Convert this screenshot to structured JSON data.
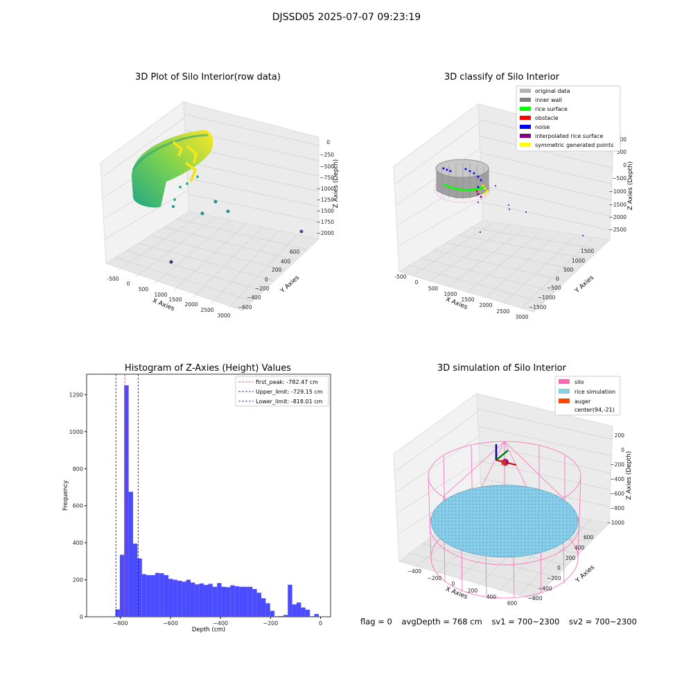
{
  "figure": {
    "suptitle": "DJSSD05 2025-07-07 09:23:19",
    "footer": {
      "flag": "flag = 0",
      "avg_depth": "avgDepth = 768 cm",
      "sv1": "sv1 = 700~2300",
      "sv2": "sv2 = 700~2300"
    }
  },
  "colors": {
    "histogram_bar": "#4b4bff",
    "first_peak_line": "#d62728",
    "limit_line": "#0000aa",
    "silo": "#ff69b4",
    "rice_simulation": "#87ceeb",
    "auger": "#ff4500",
    "original_data": "#b3b3b3",
    "inner_wall": "#808080",
    "rice_surface": "#00ff00",
    "obstacle": "#ff0000",
    "noise": "#0000ff",
    "interpolated_rice_surface": "#800080",
    "symmetric_generated_points": "#ffff00"
  },
  "chart_data": [
    {
      "type": "scatter",
      "title": "3D Plot of Silo Interior(row data)",
      "xlabel": "X Axies",
      "ylabel": "Y Axies",
      "zlabel": "Z Axies (Depth)",
      "x_ticks": [
        "-500",
        "0",
        "500",
        "1000",
        "1500",
        "2000",
        "2500",
        "3000"
      ],
      "y_ticks": [
        "600",
        "400",
        "200",
        "0",
        "−200",
        "−400",
        "−600"
      ],
      "z_ticks": [
        "0",
        "−250",
        "−500",
        "−750",
        "−1000",
        "−1250",
        "−1500",
        "−1750",
        "−2000"
      ],
      "colormap": "viridis"
    },
    {
      "type": "scatter",
      "title": "3D classify of Silo Interior",
      "xlabel": "X Axies",
      "ylabel": "Y Axies",
      "zlabel": "Z Axies (Depth)",
      "x_ticks": [
        "-500",
        "0",
        "500",
        "1000",
        "1500",
        "2000",
        "2500",
        "3000"
      ],
      "y_ticks": [
        "1500",
        "1000",
        "500",
        "0",
        "−500",
        "−1000",
        "−1500"
      ],
      "z_ticks": [
        "1000",
        "500",
        "0",
        "−500",
        "−1000",
        "−1500",
        "−2000",
        "−2500"
      ],
      "legend": [
        "original data",
        "inner wall",
        "rice surface",
        "obstacle",
        "noise",
        "interpolated rice surface",
        "symmetric generated points"
      ],
      "legend_position": "top-right"
    },
    {
      "type": "bar",
      "title": "Histogram of Z-Axies (Height) Values",
      "xlabel": "Depth (cm)",
      "ylabel": "Frequency",
      "xlim": [
        -935,
        40
      ],
      "ylim": [
        0,
        1310
      ],
      "x_ticks": [
        -800,
        -600,
        -400,
        -200,
        0
      ],
      "x_tick_labels": [
        "−800",
        "−600",
        "−400",
        "−200",
        "0"
      ],
      "y_ticks": [
        0,
        200,
        400,
        600,
        800,
        1000,
        1200
      ],
      "bin_edges": [
        -820,
        -802.33,
        -784.67,
        -767,
        -749.33,
        -731.67,
        -714,
        -696.33,
        -678.67,
        -661,
        -643.33,
        -625.67,
        -608,
        -590.33,
        -572.67,
        -555,
        -537.33,
        -519.67,
        -502,
        -484.33,
        -466.67,
        -449,
        -431.33,
        -413.67,
        -396,
        -378.33,
        -360.67,
        -343,
        -325.33,
        -307.67,
        -290,
        -272.33,
        -254.67,
        -237,
        -219.33,
        -201.67,
        -184,
        -166.33,
        -148.67,
        -131,
        -113.33,
        -95.67,
        -78,
        -60.33,
        -42.67,
        -25,
        -7.33,
        10.33
      ],
      "counts": [
        40,
        335,
        1250,
        675,
        395,
        315,
        230,
        225,
        225,
        237,
        235,
        225,
        205,
        200,
        195,
        190,
        200,
        185,
        175,
        180,
        172,
        178,
        162,
        182,
        162,
        160,
        170,
        165,
        162,
        162,
        162,
        150,
        130,
        100,
        73,
        32,
        3,
        4,
        10,
        173,
        67,
        77,
        50,
        38,
        3,
        15,
        0
      ],
      "vlines": [
        {
          "name": "first_peak: -782.47 cm",
          "x": -782.47,
          "color": "#d62728"
        },
        {
          "name": "Upper_limit: -729.15 cm",
          "x": -729.15,
          "color": "#0000aa"
        },
        {
          "name": "Lower_limit: -818.01 cm",
          "x": -818.01,
          "color": "#0000aa"
        }
      ],
      "legend_position": "top-right"
    },
    {
      "type": "scatter",
      "title": "3D simulation of Silo Interior",
      "xlabel": "X Axies",
      "ylabel": "Y Axies",
      "zlabel": "Z Axies (Depth)",
      "x_ticks": [
        "−400",
        "−200",
        "0",
        "200",
        "400",
        "600"
      ],
      "y_ticks": [
        "600",
        "400",
        "200",
        "0",
        "−200",
        "−400",
        "−600"
      ],
      "z_ticks": [
        "200",
        "0",
        "−200",
        "−400",
        "−600",
        "−800",
        "−1000"
      ],
      "legend": [
        "silo",
        "rice simulation",
        "auger",
        "center(94,-21)"
      ],
      "legend_position": "top-right"
    }
  ]
}
